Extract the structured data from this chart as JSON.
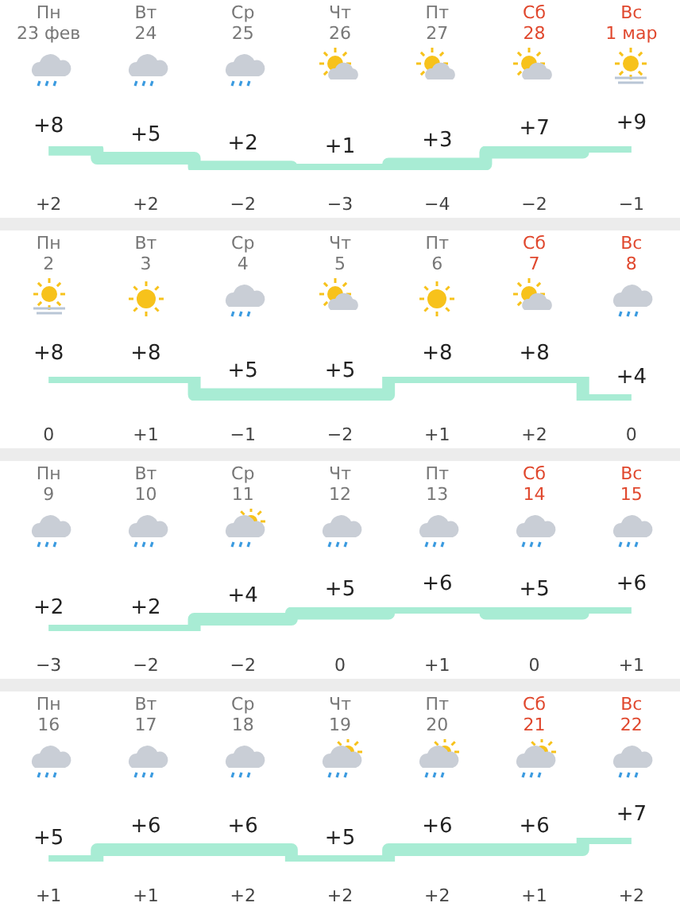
{
  "chart_data": [
    {
      "type": "step",
      "categories": [
        "Пн\n23 фев",
        "Вт\n24",
        "Ср\n25",
        "Чт\n26",
        "Пт\n27",
        "Сб\n28",
        "Вс\n1 мар"
      ],
      "series": [
        {
          "color": "#a8ecd4",
          "values": [
            8,
            5,
            2,
            1,
            3,
            7,
            9
          ],
          "value_labels": [
            "+8",
            "+5",
            "+2",
            "+1",
            "+3",
            "+7",
            "+9"
          ]
        }
      ],
      "annotations": [
        "+2",
        "+2",
        "−2",
        "−3",
        "−4",
        "−2",
        "−1"
      ]
    },
    {
      "type": "step",
      "categories": [
        "Пн\n2",
        "Вт\n3",
        "Ср\n4",
        "Чт\n5",
        "Пт\n6",
        "Сб\n7",
        "Вс\n8"
      ],
      "series": [
        {
          "color": "#a8ecd4",
          "values": [
            8,
            8,
            5,
            5,
            8,
            8,
            4
          ],
          "value_labels": [
            "+8",
            "+8",
            "+5",
            "+5",
            "+8",
            "+8",
            "+4"
          ]
        }
      ],
      "annotations": [
        "0",
        "+1",
        "−1",
        "−2",
        "+1",
        "+2",
        "0"
      ]
    },
    {
      "type": "step",
      "categories": [
        "Пн\n9",
        "Вт\n10",
        "Ср\n11",
        "Чт\n12",
        "Пт\n13",
        "Сб\n14",
        "Вс\n15"
      ],
      "series": [
        {
          "color": "#a8ecd4",
          "values": [
            2,
            2,
            4,
            5,
            6,
            5,
            6
          ],
          "value_labels": [
            "+2",
            "+2",
            "+4",
            "+5",
            "+6",
            "+5",
            "+6"
          ]
        }
      ],
      "annotations": [
        "−3",
        "−2",
        "−2",
        "0",
        "+1",
        "0",
        "+1"
      ]
    },
    {
      "type": "step",
      "categories": [
        "Пн\n16",
        "Вт\n17",
        "Ср\n18",
        "Чт\n19",
        "Пт\n20",
        "Сб\n21",
        "Вс\n22"
      ],
      "series": [
        {
          "color": "#a8ecd4",
          "values": [
            5,
            6,
            6,
            5,
            6,
            6,
            7
          ],
          "value_labels": [
            "+5",
            "+6",
            "+6",
            "+5",
            "+6",
            "+6",
            "+7"
          ]
        }
      ],
      "annotations": [
        "+1",
        "+1",
        "+2",
        "+2",
        "+2",
        "+1",
        "+2"
      ]
    }
  ]
}
